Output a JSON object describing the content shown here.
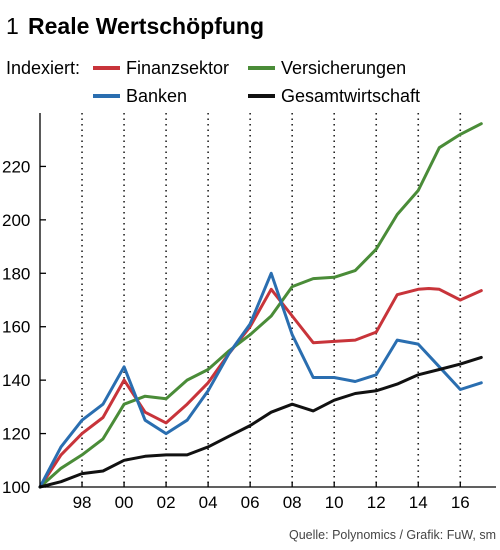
{
  "header": {
    "number": "1",
    "title": "Reale Wertschöpfung"
  },
  "legend": {
    "prefix": "Indexiert:",
    "items": [
      {
        "key": "finanzsektor",
        "label": "Finanzsektor"
      },
      {
        "key": "versicherungen",
        "label": "Versicherungen"
      },
      {
        "key": "banken",
        "label": "Banken"
      },
      {
        "key": "gesamtwirtschaft",
        "label": "Gesamtwirtschaft"
      }
    ]
  },
  "source": "Quelle: Polynomics / Grafik: FuW, sm",
  "chart_data": {
    "type": "line",
    "title": "Reale Wertschöpfung",
    "xlim": [
      1996,
      2017.7
    ],
    "ylim": [
      100,
      240
    ],
    "grid": {
      "vertical": true,
      "horizontal": false
    },
    "legend_position": "top",
    "x_ticks": [
      1998,
      2000,
      2002,
      2004,
      2006,
      2008,
      2010,
      2012,
      2014,
      2016
    ],
    "x_tick_labels": [
      "98",
      "00",
      "02",
      "04",
      "06",
      "08",
      "10",
      "12",
      "14",
      "16"
    ],
    "y_ticks": [
      100,
      120,
      140,
      160,
      180,
      200,
      220
    ],
    "y_tick_labels": [
      "100",
      "120",
      "140",
      "160",
      "180",
      "200",
      "220"
    ],
    "series": [
      {
        "name": "Finanzsektor",
        "color": "#c8343a",
        "x": [
          1996,
          1997,
          1998,
          1999,
          2000,
          2001,
          2002,
          2003,
          2004,
          2005,
          2006,
          2007,
          2008,
          2009,
          2010,
          2011,
          2012,
          2013,
          2014,
          2014.5,
          2015,
          2016,
          2017
        ],
        "y": [
          100,
          112,
          120,
          126,
          140,
          128,
          124,
          131,
          139,
          150,
          160,
          174,
          164,
          154,
          154.5,
          155,
          158,
          172,
          174,
          174.3,
          174,
          170,
          173.5
        ]
      },
      {
        "name": "Versicherungen",
        "color": "#4a8c38",
        "x": [
          1996,
          1997,
          1998,
          1999,
          2000,
          2001,
          2002,
          2003,
          2004,
          2005,
          2006,
          2007,
          2008,
          2009,
          2010,
          2011,
          2012,
          2013,
          2014,
          2015,
          2016,
          2017
        ],
        "y": [
          100,
          107,
          112,
          118,
          131,
          134,
          133,
          140,
          144,
          151,
          157,
          164,
          175,
          178,
          178.5,
          181,
          189,
          202,
          211,
          227,
          232,
          236
        ]
      },
      {
        "name": "Banken",
        "color": "#2a6eb0",
        "x": [
          1996,
          1997,
          1998,
          1999,
          2000,
          2001,
          2002,
          2003,
          2004,
          2005,
          2006,
          2007,
          2008,
          2009,
          2010,
          2011,
          2012,
          2013,
          2014,
          2015,
          2016,
          2017
        ],
        "y": [
          100,
          115,
          125,
          131,
          145,
          125,
          120,
          125,
          136,
          150,
          161,
          180,
          157,
          141,
          141,
          139.5,
          142,
          155,
          153.5,
          145,
          136.5,
          139
        ]
      },
      {
        "name": "Gesamtwirtschaft",
        "color": "#111111",
        "x": [
          1996,
          1997,
          1998,
          1999,
          2000,
          2001,
          2002,
          2003,
          2004,
          2005,
          2006,
          2007,
          2008,
          2009,
          2010,
          2011,
          2012,
          2013,
          2014,
          2015,
          2016,
          2017
        ],
        "y": [
          100,
          102,
          105,
          106,
          110,
          111.5,
          112,
          112,
          115,
          119,
          123,
          128,
          131,
          128.5,
          132.5,
          135,
          136,
          138.5,
          142,
          144,
          146,
          148.5
        ]
      }
    ]
  }
}
